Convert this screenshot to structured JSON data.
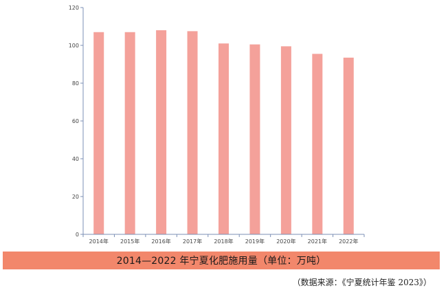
{
  "chart_data": {
    "type": "bar",
    "categories": [
      "2014年",
      "2015年",
      "2016年",
      "2017年",
      "2018年",
      "2019年",
      "2020年",
      "2021年",
      "2022年"
    ],
    "values": [
      107,
      107,
      108,
      107.5,
      101,
      100.5,
      99.5,
      95.5,
      93.5
    ],
    "yticks": [
      "0",
      "20",
      "40",
      "60",
      "80",
      "100",
      "120"
    ],
    "ylim": [
      0,
      120
    ],
    "bar_color": "#f4a19a",
    "axis_color": "#7b8fb5",
    "title": "",
    "xlabel": "",
    "ylabel": ""
  },
  "caption": {
    "text": "2014—2022 年宁夏化肥施用量（单位：万吨）",
    "background": "#f2876b"
  },
  "source": {
    "text": "（数据来源：《宁夏统计年鉴 2023》）"
  }
}
